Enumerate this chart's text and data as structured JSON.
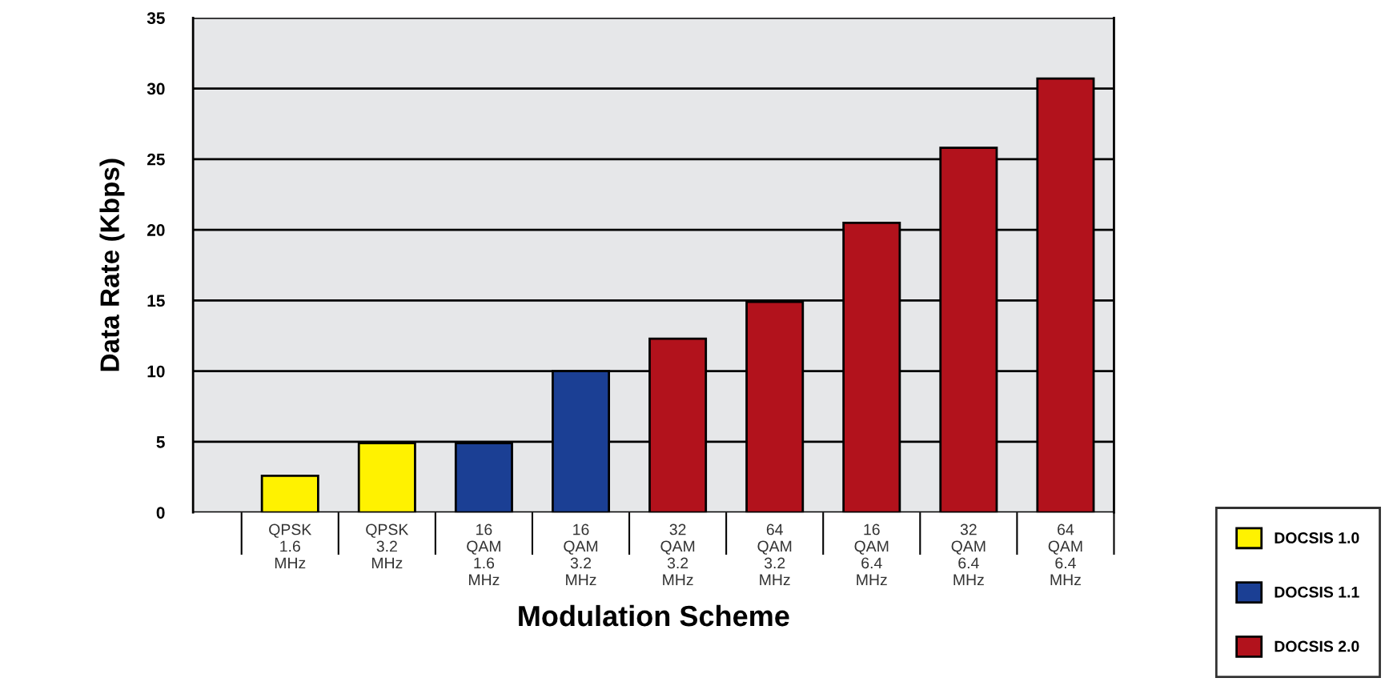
{
  "chart_data": {
    "type": "bar",
    "xlabel": "Modulation Scheme",
    "ylabel": "Data Rate (Kbps)",
    "categories": [
      "QPSK\n1.6\nMHz",
      "QPSK\n3.2\nMHz",
      "16\nQAM\n1.6\nMHz",
      "16\nQAM\n3.2\nMHz",
      "32\nQAM\n3.2\nMHz",
      "64\nQAM\n3.2\nMHz",
      "16\nQAM\n6.4\nMHz",
      "32\nQAM\n6.4\nMHz",
      "64\nQAM\n6.4\nMHz"
    ],
    "series": [
      {
        "name": "DOCSIS 1.0",
        "color": "#fff200",
        "values": [
          2.6,
          4.9,
          null,
          null,
          null,
          null,
          null,
          null,
          null
        ]
      },
      {
        "name": "DOCSIS 1.1",
        "color": "#1b3f94",
        "values": [
          null,
          null,
          4.9,
          10,
          null,
          null,
          null,
          null,
          null
        ]
      },
      {
        "name": "DOCSIS 2.0",
        "color": "#b2121c",
        "values": [
          null,
          null,
          null,
          null,
          12.3,
          14.9,
          20.5,
          25.8,
          30.7
        ]
      }
    ],
    "ylim": [
      0,
      35
    ],
    "yticks": [
      0,
      5,
      10,
      15,
      20,
      25,
      30,
      35
    ],
    "grid": "y",
    "legend": "bottom right"
  }
}
